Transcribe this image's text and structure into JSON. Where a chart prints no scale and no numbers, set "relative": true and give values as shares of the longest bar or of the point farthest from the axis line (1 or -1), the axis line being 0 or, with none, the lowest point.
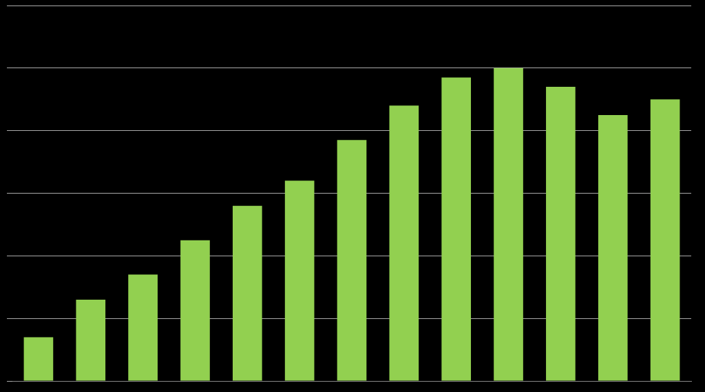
{
  "chart_data": {
    "type": "bar",
    "relative": true,
    "grid": true,
    "categories": [
      null,
      null,
      null,
      null,
      null,
      null,
      null,
      null,
      null,
      null,
      null,
      null,
      null
    ],
    "series": [
      {
        "color": "#92d050",
        "values": [
          0.14,
          0.26,
          0.34,
          0.45,
          0.56,
          0.64,
          0.77,
          0.88,
          0.97,
          1,
          0.94,
          0.85,
          0.9
        ]
      }
    ]
  }
}
